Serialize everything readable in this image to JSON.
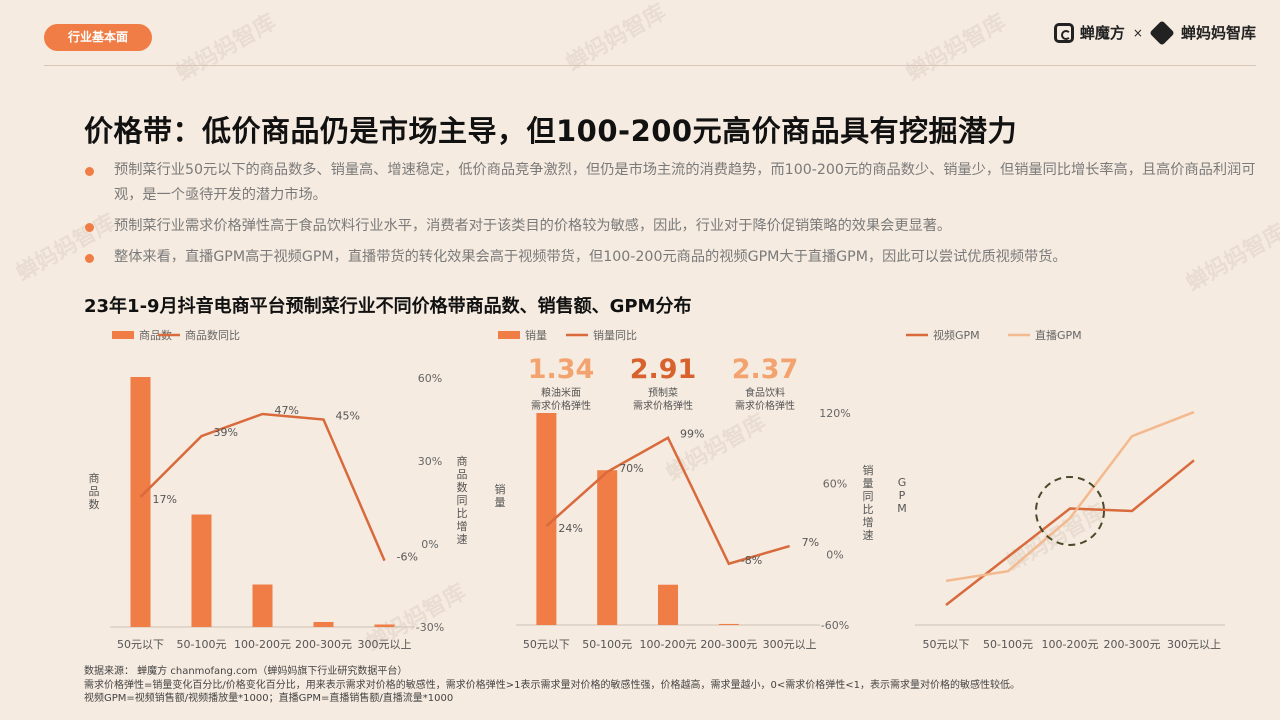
{
  "header": {
    "tag": "行业基本面",
    "brand_left": "蝉魔方",
    "brand_sep": "×",
    "brand_right": "蝉妈妈智库"
  },
  "title": "价格带：低价商品仍是市场主导，但100-200元高价商品具有挖掘潜力",
  "bullets": [
    "预制菜行业50元以下的商品数多、销量高、增速稳定，低价商品竞争激烈，但仍是市场主流的消费趋势，而100-200元的商品数少、销量少，但销量同比增长率高，且高价商品利润可观，是一个亟待开发的潜力市场。",
    "预制菜行业需求价格弹性高于食品饮料行业水平，消费者对于该类目的价格较为敏感，因此，行业对于降价促销策略的效果会更显著。",
    "整体来看，直播GPM高于视频GPM，直播带货的转化效果会高于视频带货，但100-200元商品的视频GPM大于直播GPM，因此可以尝试优质视频带货。"
  ],
  "subtitle": "23年1-9月抖音电商平台预制菜行业不同价格带商品数、销售额、GPM分布",
  "source_lines": [
    "数据来源： 蝉魔方 chanmofang.com（蝉妈妈旗下行业研究数据平台）",
    "需求价格弹性=销量变化百分比/价格变化百分比，用来表示需求对价格的敏感性，需求价格弹性>1表示需求量对价格的敏感性强，价格越高，需求量越小，0<需求价格弹性<1，表示需求量对价格的敏感性较低。",
    "视频GPM=视频销售额/视频播放量*1000；直播GPM=直播销售额/直播流量*1000"
  ],
  "watermark": "蝉妈妈智库",
  "colors": {
    "accent": "#ef7d45",
    "line_dark": "#d86a3c",
    "line_light": "#f3b98f",
    "circle": "#4a4a2a"
  },
  "chart_data": [
    {
      "type": "bar",
      "categories": [
        "50元以下",
        "50-100元",
        "100-200元",
        "200-300元",
        "300元以上"
      ],
      "series": [
        {
          "name": "商品数",
          "type": "bar",
          "values": [
            100,
            45,
            17,
            2,
            1
          ]
        },
        {
          "name": "商品数同比",
          "type": "line",
          "axis": "right",
          "values": [
            17,
            39,
            47,
            45,
            -6
          ],
          "labels": [
            "17%",
            "39%",
            "47%",
            "45%",
            "-6%"
          ]
        }
      ],
      "ylabel": "商品数",
      "y2label": "商品数同比增速",
      "y2ticks": [
        "60%",
        "30%",
        "0%",
        "-30%"
      ],
      "y2lim": [
        -30,
        60
      ]
    },
    {
      "type": "bar",
      "categories": [
        "50元以下",
        "50-100元",
        "100-200元",
        "200-300元",
        "300元以上"
      ],
      "series": [
        {
          "name": "销量",
          "type": "bar",
          "values": [
            100,
            73,
            19,
            0.5,
            0
          ]
        },
        {
          "name": "销量同比",
          "type": "line",
          "axis": "right",
          "values": [
            24,
            70,
            99,
            -8,
            7
          ],
          "labels": [
            "24%",
            "70%",
            "99%",
            "-8%",
            "7%"
          ]
        }
      ],
      "ylabel": "销量",
      "y2label": "销量同比增速",
      "y2ticks": [
        "120%",
        "60%",
        "0%",
        "-60%"
      ],
      "y2lim": [
        -60,
        120
      ],
      "annotations": [
        {
          "value": "1.34",
          "line1": "粮油米面",
          "line2": "需求价格弹性"
        },
        {
          "value": "2.91",
          "line1": "预制菜",
          "line2": "需求价格弹性"
        },
        {
          "value": "2.37",
          "line1": "食品饮料",
          "line2": "需求价格弹性"
        }
      ]
    },
    {
      "type": "line",
      "categories": [
        "50元以下",
        "50-100元",
        "100-200元",
        "200-300元",
        "300元以上"
      ],
      "series": [
        {
          "name": "视频GPM",
          "values": [
            0,
            20,
            40,
            39,
            60
          ]
        },
        {
          "name": "直播GPM",
          "values": [
            10,
            14,
            36,
            70,
            80
          ]
        }
      ],
      "ylabel": "GPM",
      "ylim": [
        0,
        85
      ]
    }
  ]
}
